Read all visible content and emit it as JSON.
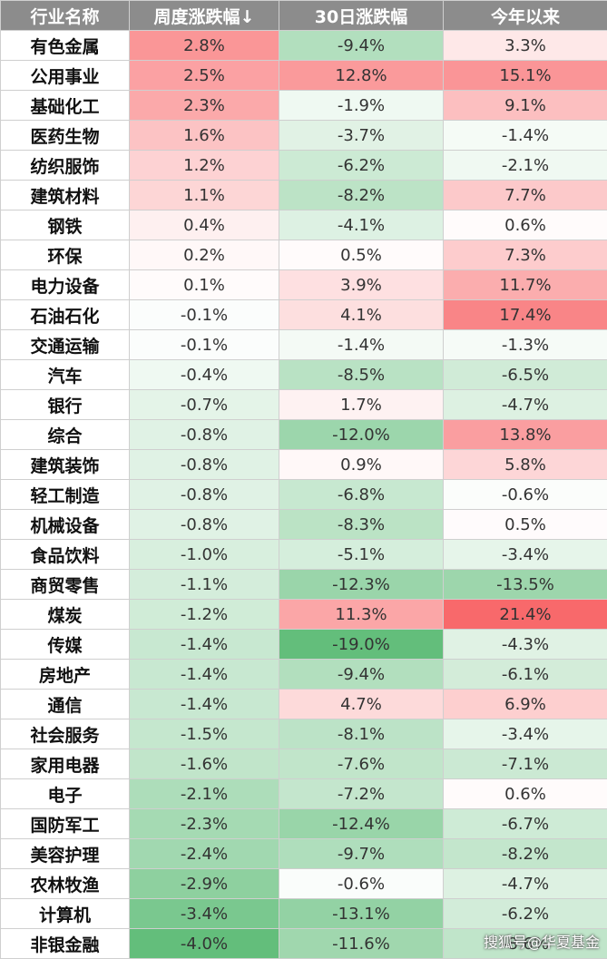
{
  "chart_data": {
    "type": "table",
    "columns": [
      "行业名称",
      "周度涨跌幅↓",
      "30日涨跌幅",
      "今年以来"
    ],
    "rows": [
      [
        "有色金属",
        "2.8%",
        "-9.4%",
        "3.3%"
      ],
      [
        "公用事业",
        "2.5%",
        "12.8%",
        "15.1%"
      ],
      [
        "基础化工",
        "2.3%",
        "-1.9%",
        "9.1%"
      ],
      [
        "医药生物",
        "1.6%",
        "-3.7%",
        "-1.4%"
      ],
      [
        "纺织服饰",
        "1.2%",
        "-6.2%",
        "-2.1%"
      ],
      [
        "建筑材料",
        "1.1%",
        "-8.2%",
        "7.7%"
      ],
      [
        "钢铁",
        "0.4%",
        "-4.1%",
        "0.6%"
      ],
      [
        "环保",
        "0.2%",
        "0.5%",
        "7.3%"
      ],
      [
        "电力设备",
        "0.1%",
        "3.9%",
        "11.7%"
      ],
      [
        "石油石化",
        "-0.1%",
        "4.1%",
        "17.4%"
      ],
      [
        "交通运输",
        "-0.1%",
        "-1.4%",
        "-1.3%"
      ],
      [
        "汽车",
        "-0.4%",
        "-8.5%",
        "-6.5%"
      ],
      [
        "银行",
        "-0.7%",
        "1.7%",
        "-4.7%"
      ],
      [
        "综合",
        "-0.8%",
        "-12.0%",
        "13.8%"
      ],
      [
        "建筑装饰",
        "-0.8%",
        "0.9%",
        "5.8%"
      ],
      [
        "轻工制造",
        "-0.8%",
        "-6.8%",
        "-0.6%"
      ],
      [
        "机械设备",
        "-0.8%",
        "-8.3%",
        "0.5%"
      ],
      [
        "食品饮料",
        "-1.0%",
        "-5.1%",
        "-3.4%"
      ],
      [
        "商贸零售",
        "-1.1%",
        "-12.3%",
        "-13.5%"
      ],
      [
        "煤炭",
        "-1.2%",
        "11.3%",
        "21.4%"
      ],
      [
        "传媒",
        "-1.4%",
        "-19.0%",
        "-4.3%"
      ],
      [
        "房地产",
        "-1.4%",
        "-9.4%",
        "-6.1%"
      ],
      [
        "通信",
        "-1.4%",
        "4.7%",
        "6.9%"
      ],
      [
        "社会服务",
        "-1.5%",
        "-8.1%",
        "-3.4%"
      ],
      [
        "家用电器",
        "-1.6%",
        "-7.6%",
        "-7.1%"
      ],
      [
        "电子",
        "-2.1%",
        "-7.2%",
        "0.6%"
      ],
      [
        "国防军工",
        "-2.3%",
        "-12.4%",
        "-6.7%"
      ],
      [
        "美容护理",
        "-2.4%",
        "-9.7%",
        "-8.2%"
      ],
      [
        "农林牧渔",
        "-2.9%",
        "-0.6%",
        "-4.7%"
      ],
      [
        "计算机",
        "-3.4%",
        "-13.1%",
        "-6.2%"
      ],
      [
        "非银金融",
        "-4.0%",
        "-11.6%",
        "-8.6%"
      ]
    ]
  },
  "watermark": "搜狐号@华夏基金",
  "colors": {
    "header_bg": "#8c8c8c",
    "positive": "#f8696b",
    "negative": "#63be7b",
    "border": "#cfcfcf"
  }
}
